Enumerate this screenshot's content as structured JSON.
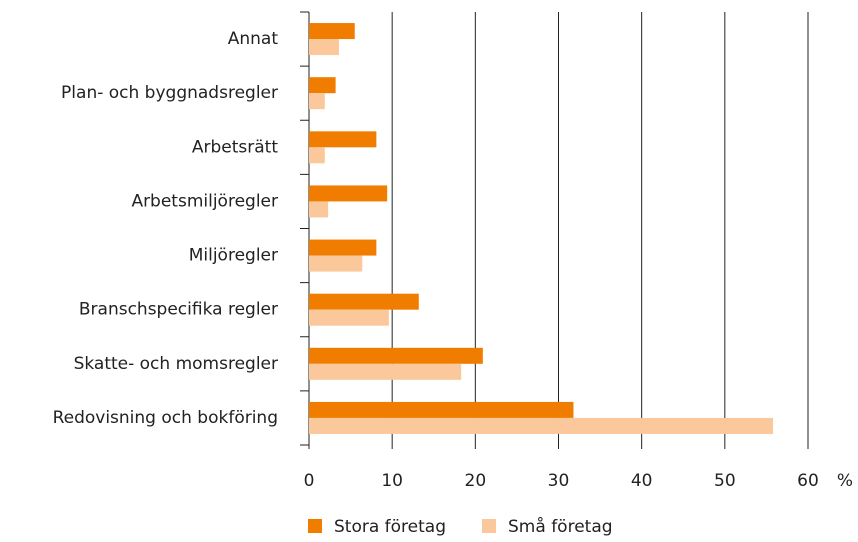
{
  "chart_data": {
    "type": "hbar",
    "categories": [
      "Annat",
      "Plan- och byggnadsregler",
      "Arbetsrätt",
      "Arbetsmiljöregler",
      "Miljöregler",
      "Branschspecifika regler",
      "Skatte- och momsregler",
      "Redovisning och bokföring"
    ],
    "series": [
      {
        "name": "Stora företag",
        "color": "#f07d00",
        "values": [
          5.5,
          3.2,
          8.1,
          9.4,
          8.1,
          13.2,
          20.9,
          31.8
        ]
      },
      {
        "name": "Små företag",
        "color": "#fac89b",
        "values": [
          3.6,
          1.9,
          1.9,
          2.3,
          6.4,
          9.6,
          18.3,
          55.8
        ]
      }
    ],
    "xlabel": "%",
    "xlim": [
      0,
      60
    ],
    "xticks": [
      0,
      10,
      20,
      30,
      40,
      50,
      60
    ],
    "grid": true,
    "legend": "bottom"
  }
}
